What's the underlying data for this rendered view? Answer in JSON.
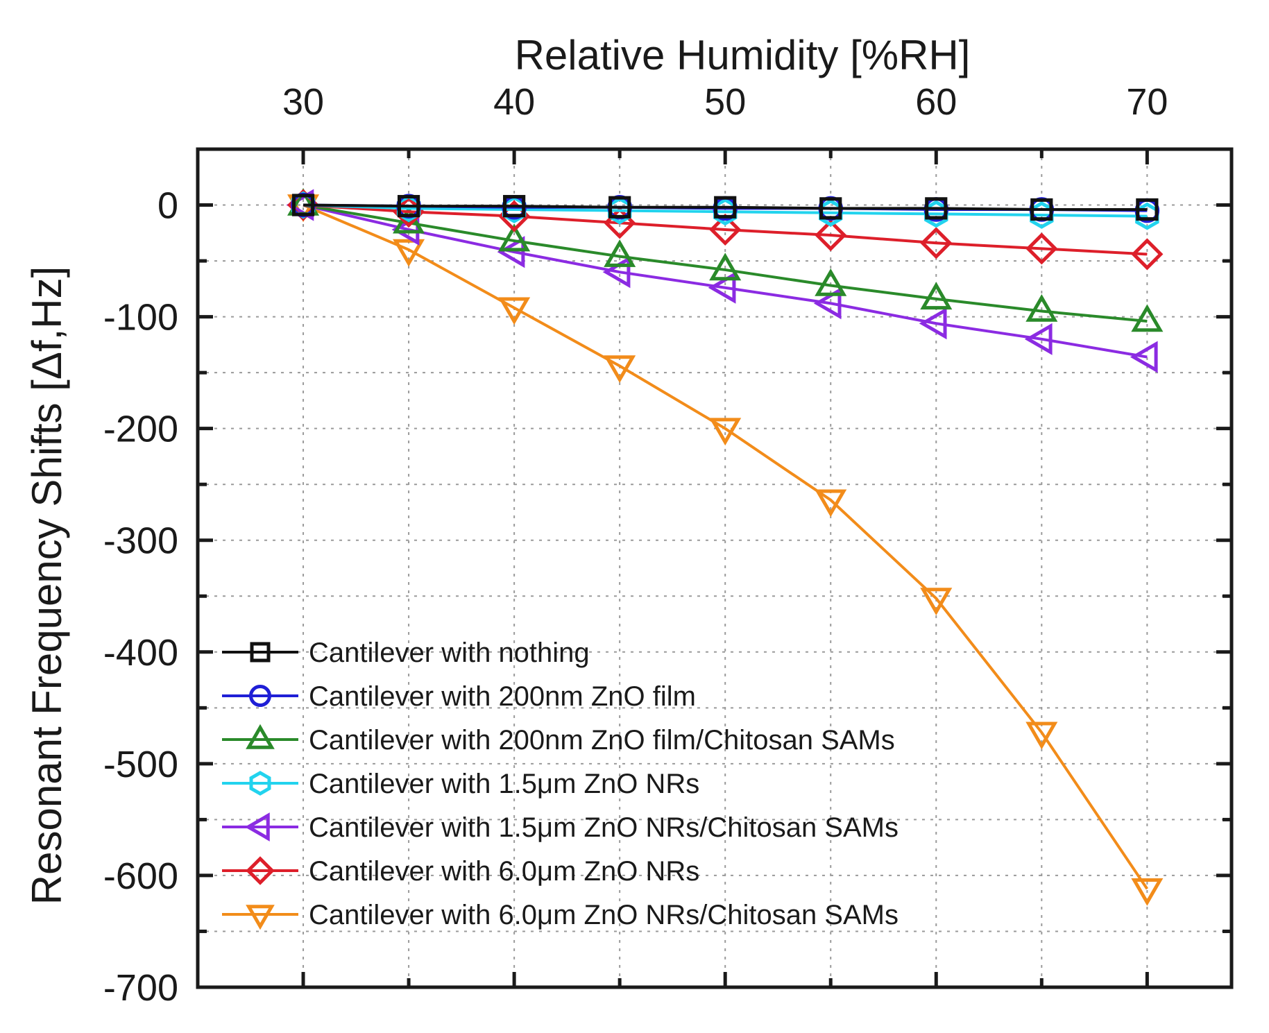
{
  "chart_data": {
    "type": "line",
    "title": "",
    "xlabel": "Relative Humidity [%RH]",
    "ylabel": "Resonant Frequency Shifts [Δf,Hz]",
    "xaxis_position": "top",
    "xlim": [
      25,
      74
    ],
    "ylim": [
      -700,
      50
    ],
    "xticks": [
      30,
      40,
      50,
      60,
      70
    ],
    "yticks": [
      0,
      -100,
      -200,
      -300,
      -400,
      -500,
      -600,
      -700
    ],
    "xtick_labels": [
      "30",
      "40",
      "50",
      "60",
      "70"
    ],
    "ytick_labels": [
      "0",
      "-100",
      "-200",
      "-300",
      "-400",
      "-500",
      "-600",
      "-700"
    ],
    "grid": true,
    "legend_position": "bottom-left",
    "x": [
      30,
      35,
      40,
      45,
      50,
      55,
      60,
      65,
      70
    ],
    "series": [
      {
        "name": "Cantilever with nothing",
        "marker": "square",
        "color": "#111111",
        "values": [
          0,
          -1,
          -1,
          -2,
          -2,
          -3,
          -3,
          -4,
          -4
        ]
      },
      {
        "name": "Cantilever with 200nm ZnO film",
        "marker": "circle",
        "color": "#1f1fd6",
        "values": [
          0,
          -1,
          -2,
          -2,
          -3,
          -3,
          -4,
          -4,
          -5
        ]
      },
      {
        "name": "Cantilever with 200nm ZnO film/Chitosan SAMs",
        "marker": "triangle-up",
        "color": "#2a8a2a",
        "values": [
          0,
          -16,
          -32,
          -46,
          -58,
          -72,
          -84,
          -95,
          -104
        ]
      },
      {
        "name": "Cantilever with 1.5μm ZnO NRs",
        "marker": "hexagon",
        "color": "#22d3ee",
        "values": [
          0,
          -3,
          -4,
          -5,
          -6,
          -7,
          -8,
          -9,
          -10
        ]
      },
      {
        "name": "Cantilever with 1.5μm ZnO NRs/Chitosan SAMs",
        "marker": "triangle-left",
        "color": "#8b2be2",
        "values": [
          0,
          -22,
          -42,
          -60,
          -74,
          -88,
          -106,
          -120,
          -136
        ]
      },
      {
        "name": "Cantilever with 6.0μm ZnO NRs",
        "marker": "diamond",
        "color": "#dd1f2a",
        "values": [
          0,
          -6,
          -10,
          -16,
          -22,
          -27,
          -34,
          -39,
          -44
        ]
      },
      {
        "name": "Cantilever with 6.0μm ZnO NRs/Chitosan SAMs",
        "marker": "triangle-down",
        "color": "#f28c1a",
        "values": [
          0,
          -40,
          -92,
          -144,
          -200,
          -264,
          -352,
          -472,
          -612
        ]
      }
    ]
  }
}
